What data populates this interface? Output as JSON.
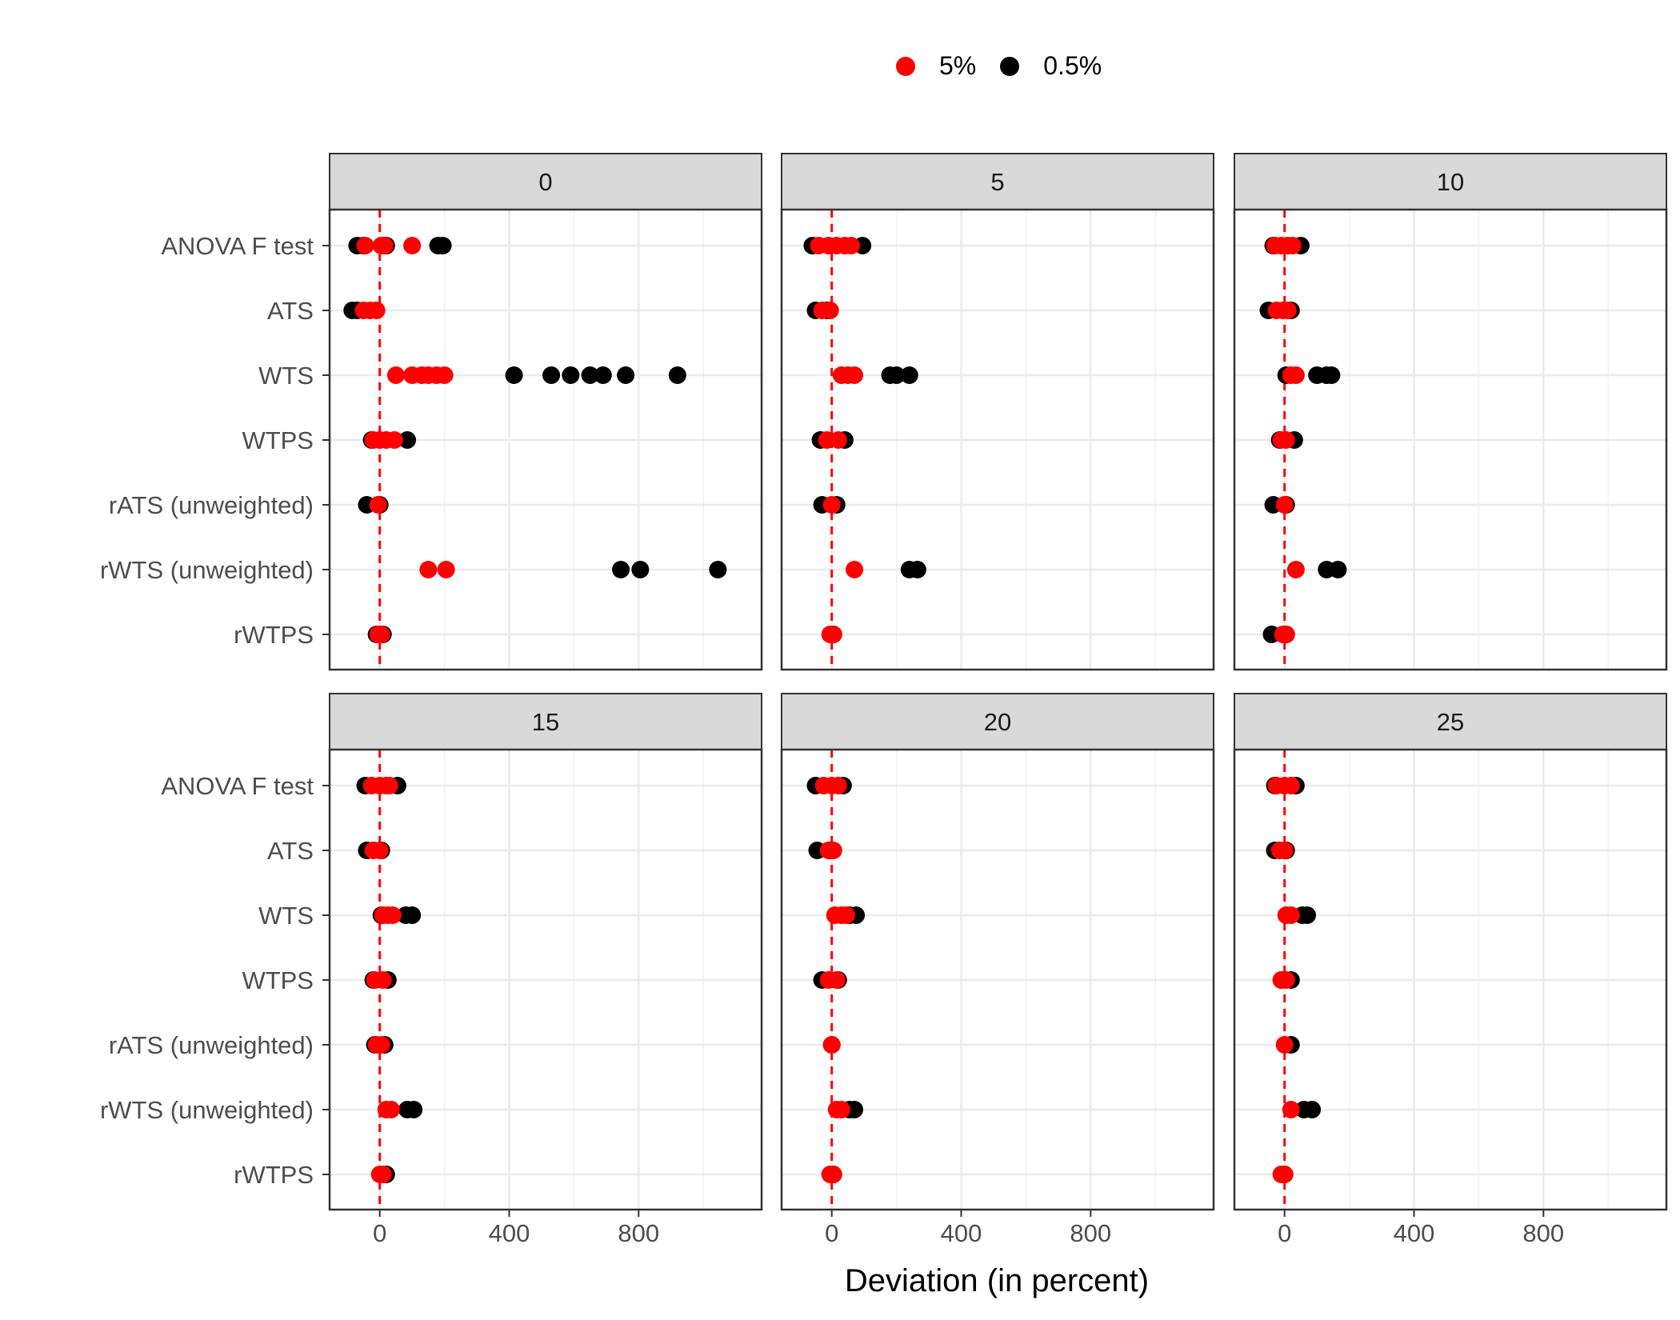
{
  "chart_data": {
    "type": "scatter",
    "xlabel": "Deviation (in percent)",
    "ylabel": "",
    "xlim": [
      -155,
      1180
    ],
    "x_ticks": [
      0,
      400,
      800
    ],
    "x_tick_labels": [
      "0",
      "400",
      "800"
    ],
    "reference_line": 0,
    "grid": true,
    "legend_position": "top",
    "categories": [
      "ANOVA F test",
      "ATS",
      "WTS",
      "WTPS",
      "rATS (unweighted)",
      "rWTS (unweighted)",
      "rWTPS"
    ],
    "series": [
      {
        "name": "5%",
        "color": "#ff0000"
      },
      {
        "name": "0.5%",
        "color": "#000000"
      }
    ],
    "panels": [
      {
        "label": "0",
        "points": {
          "0.5%": {
            "ANOVA F test": [
              -70,
              -50,
              20,
              180,
              195
            ],
            "ATS": [
              -85,
              -70
            ],
            "WTS": [
              415,
              530,
              590,
              650,
              690,
              760,
              920
            ],
            "WTPS": [
              -25,
              85
            ],
            "rATS (unweighted)": [
              -40,
              0
            ],
            "rWTS (unweighted)": [
              745,
              805,
              1045
            ],
            "rWTPS": [
              -10,
              10
            ]
          },
          "5%": {
            "ANOVA F test": [
              -45,
              5,
              15,
              100
            ],
            "ATS": [
              -50,
              -30,
              -10
            ],
            "WTS": [
              50,
              100,
              130,
              150,
              175,
              200
            ],
            "WTPS": [
              -20,
              0,
              20,
              45
            ],
            "rATS (unweighted)": [
              -5
            ],
            "rWTS (unweighted)": [
              150,
              205
            ],
            "rWTPS": [
              -5,
              5
            ]
          }
        }
      },
      {
        "label": "5",
        "points": {
          "0.5%": {
            "ANOVA F test": [
              -60,
              95
            ],
            "ATS": [
              -50,
              -15
            ],
            "WTS": [
              180,
              200,
              240
            ],
            "WTPS": [
              -35,
              40
            ],
            "rATS (unweighted)": [
              -30,
              15
            ],
            "rWTS (unweighted)": [
              240,
              265
            ],
            "rWTPS": [
              5
            ]
          },
          "5%": {
            "ANOVA F test": [
              -40,
              -10,
              15,
              40,
              60
            ],
            "ATS": [
              -30,
              -5
            ],
            "WTS": [
              30,
              50,
              70
            ],
            "WTPS": [
              -15,
              20
            ],
            "rATS (unweighted)": [
              0
            ],
            "rWTS (unweighted)": [
              70
            ],
            "rWTPS": [
              -5,
              5
            ]
          }
        }
      },
      {
        "label": "10",
        "points": {
          "0.5%": {
            "ANOVA F test": [
              -35,
              50
            ],
            "ATS": [
              -50,
              20
            ],
            "WTS": [
              5,
              100,
              130,
              145
            ],
            "WTPS": [
              -15,
              30
            ],
            "rATS (unweighted)": [
              -35,
              5
            ],
            "rWTS (unweighted)": [
              130,
              165
            ],
            "rWTPS": [
              -40,
              5
            ]
          },
          "5%": {
            "ANOVA F test": [
              -30,
              -10,
              10,
              25
            ],
            "ATS": [
              -25,
              -5,
              10
            ],
            "WTS": [
              20,
              35
            ],
            "WTPS": [
              -10,
              5
            ],
            "rATS (unweighted)": [
              0
            ],
            "rWTS (unweighted)": [
              35
            ],
            "rWTPS": [
              -5,
              5
            ]
          }
        }
      },
      {
        "label": "15",
        "points": {
          "0.5%": {
            "ANOVA F test": [
              -45,
              55
            ],
            "ATS": [
              -40,
              5
            ],
            "WTS": [
              5,
              80,
              100
            ],
            "WTPS": [
              -20,
              25
            ],
            "rATS (unweighted)": [
              -15,
              15
            ],
            "rWTS (unweighted)": [
              85,
              105
            ],
            "rWTPS": [
              20
            ]
          },
          "5%": {
            "ANOVA F test": [
              -25,
              0,
              20,
              30
            ],
            "ATS": [
              -20,
              0
            ],
            "WTS": [
              10,
              25,
              40
            ],
            "WTPS": [
              -15,
              10
            ],
            "rATS (unweighted)": [
              -10,
              5
            ],
            "rWTS (unweighted)": [
              20,
              35
            ],
            "rWTPS": [
              0,
              10
            ]
          }
        }
      },
      {
        "label": "20",
        "points": {
          "0.5%": {
            "ANOVA F test": [
              -50,
              35
            ],
            "ATS": [
              -45,
              -5
            ],
            "WTS": [
              55,
              75
            ],
            "WTPS": [
              -30,
              20
            ],
            "rATS (unweighted)": [
              0
            ],
            "rWTS (unweighted)": [
              55,
              70
            ],
            "rWTPS": [
              5
            ]
          },
          "5%": {
            "ANOVA F test": [
              -25,
              0,
              20
            ],
            "ATS": [
              -10,
              5
            ],
            "WTS": [
              10,
              30,
              45
            ],
            "WTPS": [
              -10,
              15
            ],
            "rATS (unweighted)": [
              0
            ],
            "rWTS (unweighted)": [
              15,
              30
            ],
            "rWTPS": [
              -5,
              5
            ]
          }
        }
      },
      {
        "label": "25",
        "points": {
          "0.5%": {
            "ANOVA F test": [
              -30,
              35
            ],
            "ATS": [
              -30,
              5
            ],
            "WTS": [
              55,
              70
            ],
            "WTPS": [
              -10,
              20
            ],
            "rATS (unweighted)": [
              20
            ],
            "rWTS (unweighted)": [
              60,
              85
            ],
            "rWTPS": [
              0
            ]
          },
          "5%": {
            "ANOVA F test": [
              -25,
              0,
              20
            ],
            "ATS": [
              -15,
              0
            ],
            "WTS": [
              5,
              20
            ],
            "WTPS": [
              -10,
              5
            ],
            "rATS (unweighted)": [
              0
            ],
            "rWTS (unweighted)": [
              20
            ],
            "rWTPS": [
              -10,
              0
            ]
          }
        }
      }
    ]
  }
}
